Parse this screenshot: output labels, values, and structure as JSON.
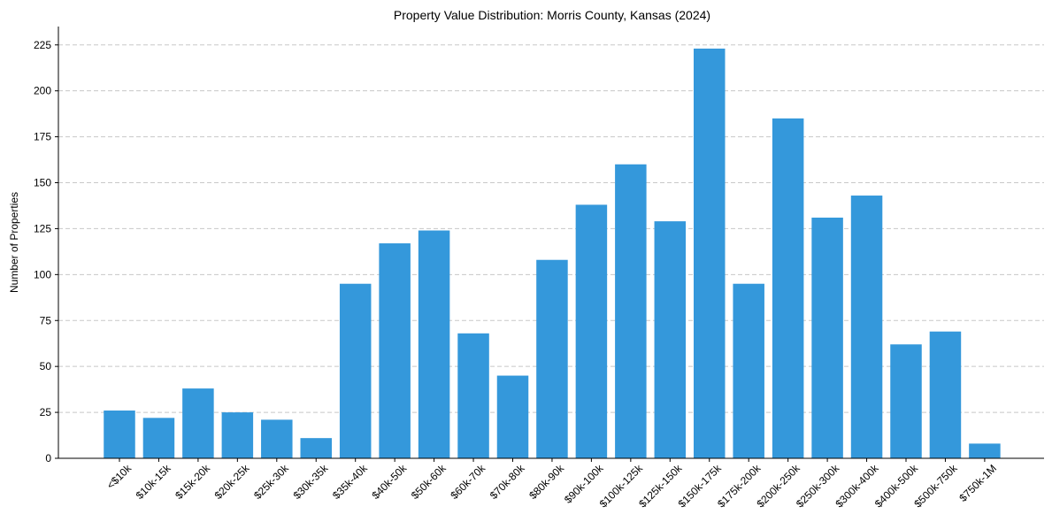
{
  "chart_data": {
    "type": "bar",
    "title": "Property Value Distribution: Morris County, Kansas (2024)",
    "xlabel": "",
    "ylabel": "Number of Properties",
    "ylim": [
      0,
      235
    ],
    "yticks": [
      0,
      25,
      50,
      75,
      100,
      125,
      150,
      175,
      200,
      225
    ],
    "grid": "y-dashed",
    "categories": [
      "<$10k",
      "$10k-15k",
      "$15k-20k",
      "$20k-25k",
      "$25k-30k",
      "$30k-35k",
      "$35k-40k",
      "$40k-50k",
      "$50k-60k",
      "$60k-70k",
      "$70k-80k",
      "$80k-90k",
      "$90k-100k",
      "$100k-125k",
      "$125k-150k",
      "$150k-175k",
      "$175k-200k",
      "$200k-250k",
      "$250k-300k",
      "$300k-400k",
      "$400k-500k",
      "$500k-750k",
      "$750k-1M"
    ],
    "values": [
      26,
      22,
      38,
      25,
      21,
      11,
      95,
      117,
      124,
      68,
      45,
      108,
      138,
      160,
      129,
      223,
      95,
      185,
      131,
      143,
      62,
      69,
      8
    ],
    "bar_color": "#3498db"
  }
}
